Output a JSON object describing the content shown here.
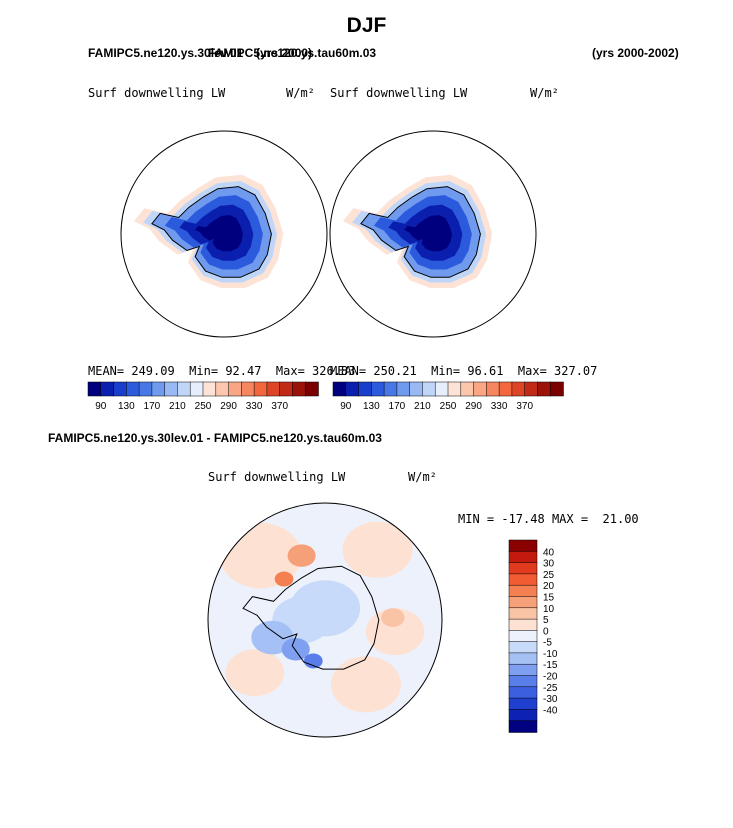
{
  "page": {
    "title": "DJF",
    "case_label": "FAMIPC5.ne120.ys.30lev.01",
    "case_label_overlap": "FAMIPC5.ne120.ys.tau60m.03",
    "years_left": "(yrs 2000)",
    "years_right": "(yrs 2000-2002)",
    "diff_title": "FAMIPC5.ne120.ys.30lev.01 - FAMIPC5.ne120.ys.tau60m.03"
  },
  "chart_data": [
    {
      "type": "heatmap",
      "title": "Surf downwelling LW",
      "units": "W/m²",
      "projection": "south polar stereographic",
      "stats": {
        "mean_label": "MEAN=",
        "mean": "249.09",
        "min_label": "Min=",
        "min": "92.47",
        "max_label": "Max=",
        "max": "326.83"
      },
      "levels_labels": [
        "90",
        "130",
        "170",
        "210",
        "250",
        "290",
        "330",
        "370"
      ],
      "colors": [
        "#00007f",
        "#0b1fae",
        "#1a3ecc",
        "#2b5bdc",
        "#4878e6",
        "#6f9aee",
        "#98b9f4",
        "#c0d6f9",
        "#e6eefb",
        "#fde3d6",
        "#fbc6ac",
        "#f8a683",
        "#f5865f",
        "#f2673e",
        "#de4527",
        "#c02a17",
        "#9a1208",
        "#7a0000"
      ]
    },
    {
      "type": "heatmap",
      "title": "Surf downwelling LW",
      "units": "W/m²",
      "projection": "south polar stereographic",
      "stats": {
        "mean_label": "MEAN=",
        "mean": "250.21",
        "min_label": "Min=",
        "min": "96.61",
        "max_label": "Max=",
        "max": "327.07"
      },
      "levels_labels": [
        "90",
        "130",
        "170",
        "210",
        "250",
        "290",
        "330",
        "370"
      ],
      "colors": [
        "#00007f",
        "#0b1fae",
        "#1a3ecc",
        "#2b5bdc",
        "#4878e6",
        "#6f9aee",
        "#98b9f4",
        "#c0d6f9",
        "#e6eefb",
        "#fde3d6",
        "#fbc6ac",
        "#f8a683",
        "#f5865f",
        "#f2673e",
        "#de4527",
        "#c02a17",
        "#9a1208",
        "#7a0000"
      ]
    },
    {
      "type": "heatmap",
      "title": "Surf downwelling LW",
      "units": "W/m²",
      "projection": "south polar stereographic",
      "stats": {
        "min_label": "MIN =",
        "min": "-17.48",
        "max_label": "MAX =",
        "max": "21.00"
      },
      "levels_labels": [
        "40",
        "30",
        "25",
        "20",
        "15",
        "10",
        "5",
        "0",
        "-5",
        "-10",
        "-15",
        "-20",
        "-25",
        "-30",
        "-40"
      ],
      "colors": [
        "#8b0000",
        "#c31a0f",
        "#e23a1e",
        "#f25c32",
        "#f47f50",
        "#f6a07a",
        "#f9c3a6",
        "#fde2d4",
        "#edf1fb",
        "#c7daf9",
        "#a4c0f5",
        "#7f9ff0",
        "#5a7ee9",
        "#3b5fdf",
        "#1f3fcf",
        "#0c22b3",
        "#000080"
      ]
    }
  ]
}
